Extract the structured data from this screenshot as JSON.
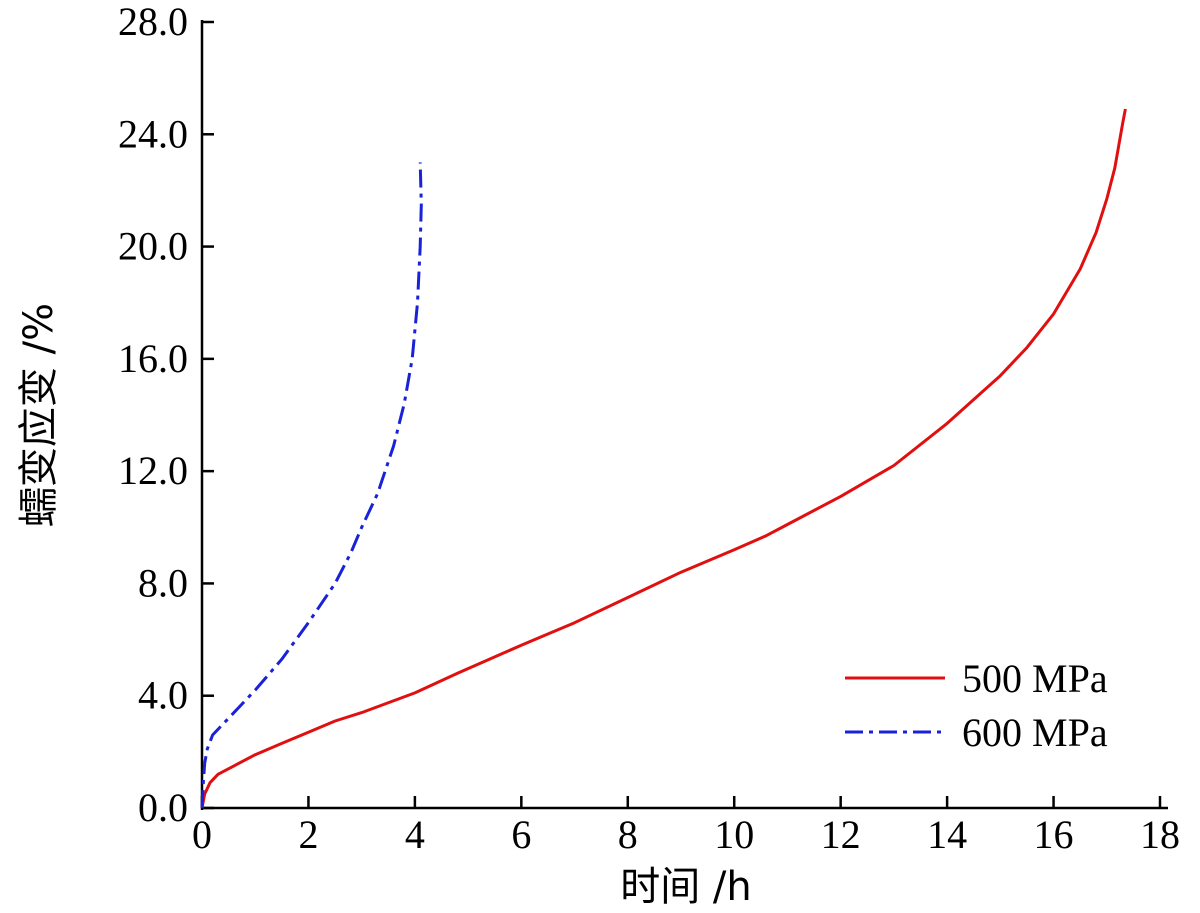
{
  "chart_data": {
    "type": "line",
    "title": "",
    "xlabel": "时间 /h",
    "ylabel": "蠕变应变 /%",
    "xlim": [
      0,
      18
    ],
    "ylim": [
      0,
      28
    ],
    "x_ticks": [
      0,
      2,
      4,
      6,
      8,
      10,
      12,
      14,
      16,
      18
    ],
    "x_tick_labels": [
      "0",
      "2",
      "4",
      "6",
      "8",
      "10",
      "12",
      "14",
      "16",
      "18"
    ],
    "y_ticks": [
      0,
      4,
      8,
      12,
      16,
      20,
      24,
      28
    ],
    "y_tick_labels": [
      "0.0",
      "4.0",
      "8.0",
      "12.0",
      "16.0",
      "20.0",
      "24.0",
      "28.0"
    ],
    "grid": false,
    "legend_position": "bottom-right",
    "series": [
      {
        "name": "500 MPa",
        "color": "#e01010",
        "style": "solid",
        "points": [
          [
            0,
            0.0
          ],
          [
            0.05,
            0.5
          ],
          [
            0.15,
            0.9
          ],
          [
            0.3,
            1.2
          ],
          [
            0.6,
            1.5
          ],
          [
            1.0,
            1.9
          ],
          [
            1.5,
            2.3
          ],
          [
            2.0,
            2.7
          ],
          [
            2.5,
            3.1
          ],
          [
            3.0,
            3.4
          ],
          [
            4.0,
            4.1
          ],
          [
            4.8,
            4.8
          ],
          [
            6.0,
            5.8
          ],
          [
            7.0,
            6.6
          ],
          [
            8.0,
            7.5
          ],
          [
            9.0,
            8.4
          ],
          [
            10.0,
            9.2
          ],
          [
            10.6,
            9.7
          ],
          [
            11.0,
            10.1
          ],
          [
            12.0,
            11.1
          ],
          [
            13.0,
            12.2
          ],
          [
            14.0,
            13.7
          ],
          [
            15.0,
            15.4
          ],
          [
            15.5,
            16.4
          ],
          [
            16.0,
            17.6
          ],
          [
            16.5,
            19.2
          ],
          [
            16.8,
            20.5
          ],
          [
            17.0,
            21.7
          ],
          [
            17.15,
            22.8
          ],
          [
            17.3,
            24.4
          ],
          [
            17.35,
            24.9
          ]
        ]
      },
      {
        "name": "600 MPa",
        "color": "#1a22d8",
        "style": "dash-dot",
        "points": [
          [
            0,
            0.0
          ],
          [
            0.02,
            0.8
          ],
          [
            0.05,
            1.6
          ],
          [
            0.1,
            2.1
          ],
          [
            0.2,
            2.6
          ],
          [
            0.5,
            3.2
          ],
          [
            1.0,
            4.2
          ],
          [
            1.5,
            5.3
          ],
          [
            2.0,
            6.6
          ],
          [
            2.5,
            8.0
          ],
          [
            2.8,
            9.1
          ],
          [
            3.0,
            10.0
          ],
          [
            3.3,
            11.2
          ],
          [
            3.6,
            12.9
          ],
          [
            3.8,
            14.4
          ],
          [
            3.95,
            16.0
          ],
          [
            4.05,
            18.0
          ],
          [
            4.1,
            20.0
          ],
          [
            4.12,
            21.5
          ],
          [
            4.1,
            23.0
          ]
        ]
      }
    ]
  }
}
